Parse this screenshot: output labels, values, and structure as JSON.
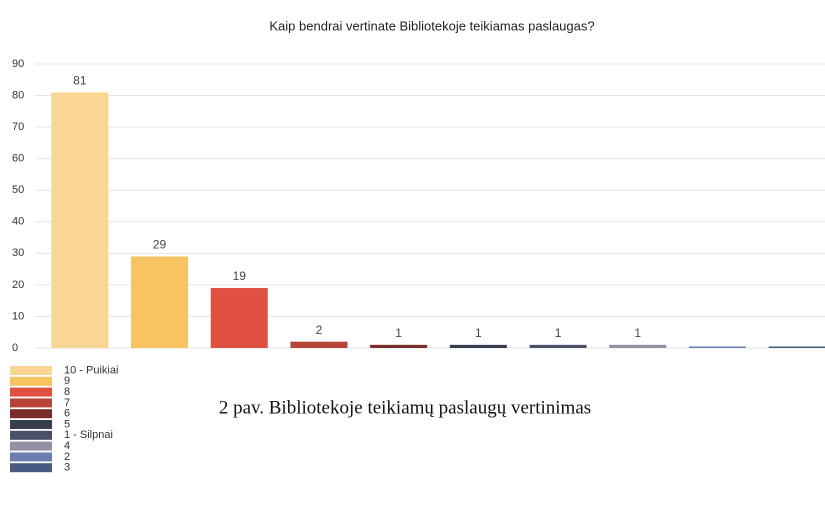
{
  "chart_data": {
    "type": "bar",
    "title": "Kaip bendrai vertinate Bibliotekoje teikiamas paslaugas?",
    "categories": [
      "10 - Puikiai",
      "9",
      "8",
      "7",
      "6",
      "5",
      "1 - Silpnai",
      "4",
      "2",
      "3"
    ],
    "values": [
      81,
      29,
      19,
      2,
      1,
      1,
      1,
      1,
      0,
      0
    ],
    "colors": [
      "#fad694",
      "#f8c461",
      "#e05040",
      "#b84438",
      "#7a2e2a",
      "#353d4e",
      "#4a5068",
      "#9590a3",
      "#6a7fb0",
      "#485a80"
    ],
    "ylim": [
      0,
      90
    ],
    "yticks": [
      0,
      10,
      20,
      30,
      40,
      50,
      60,
      70,
      80,
      90
    ],
    "grid": true,
    "legend": "bottom-left",
    "annotation": "2 pav. Bibliotekoje teikiamų paslaugų vertinimas"
  }
}
